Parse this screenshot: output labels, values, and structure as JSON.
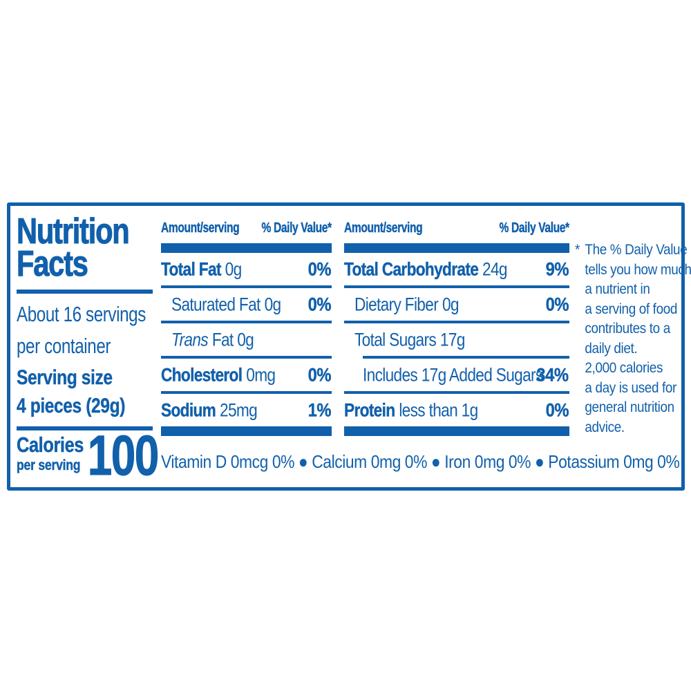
{
  "colors": {
    "blue": "#1160ab",
    "background": "#ffffff"
  },
  "title": {
    "line1": "Nutrition",
    "line2": "Facts"
  },
  "servings_per_container": {
    "line1": "About 16 servings",
    "line2": "per container"
  },
  "serving_size": {
    "label": "Serving size",
    "value": "4 pieces (29g)"
  },
  "calories": {
    "label": "Calories",
    "sublabel": "per serving",
    "value": "100"
  },
  "columns": [
    {
      "header": {
        "amount": "Amount/serving",
        "daily_value": "% Daily Value*"
      },
      "rows": [
        {
          "name": "Total Fat",
          "amount": "0g",
          "dv": "0%"
        },
        {
          "name": "Saturated Fat",
          "amount": "0g",
          "dv": "0%"
        },
        {
          "name": "Trans",
          "amount": "Fat 0g",
          "dv": ""
        },
        {
          "name": "Cholesterol",
          "amount": "0mg",
          "dv": "0%"
        },
        {
          "name": "Sodium",
          "amount": "25mg",
          "dv": "1%"
        }
      ]
    },
    {
      "header": {
        "amount": "Amount/serving",
        "daily_value": "% Daily Value*"
      },
      "rows": [
        {
          "name": "Total Carbohydrate",
          "amount": "24g",
          "dv": "9%"
        },
        {
          "name": "Dietary Fiber",
          "amount": "0g",
          "dv": "0%"
        },
        {
          "name": "Total Sugars",
          "amount": "17g",
          "dv": ""
        },
        {
          "name": "Includes 17g Added Sugars",
          "amount": "",
          "dv": "34%"
        },
        {
          "name": "Protein",
          "amount": "less than 1g",
          "dv": "0%"
        }
      ]
    }
  ],
  "micronutrients": "Vitamin D 0mcg 0% ● Calcium 0mg 0% ● Iron 0mg 0% ● Potassium 0mg 0%",
  "footnote": {
    "marker": "*",
    "lines": [
      "The % Daily Value",
      "tells you how much",
      "a nutrient in",
      "a serving of food",
      "contributes to a",
      "daily diet.",
      "2,000 calories",
      "a day is used for",
      "general nutrition",
      "advice."
    ]
  }
}
